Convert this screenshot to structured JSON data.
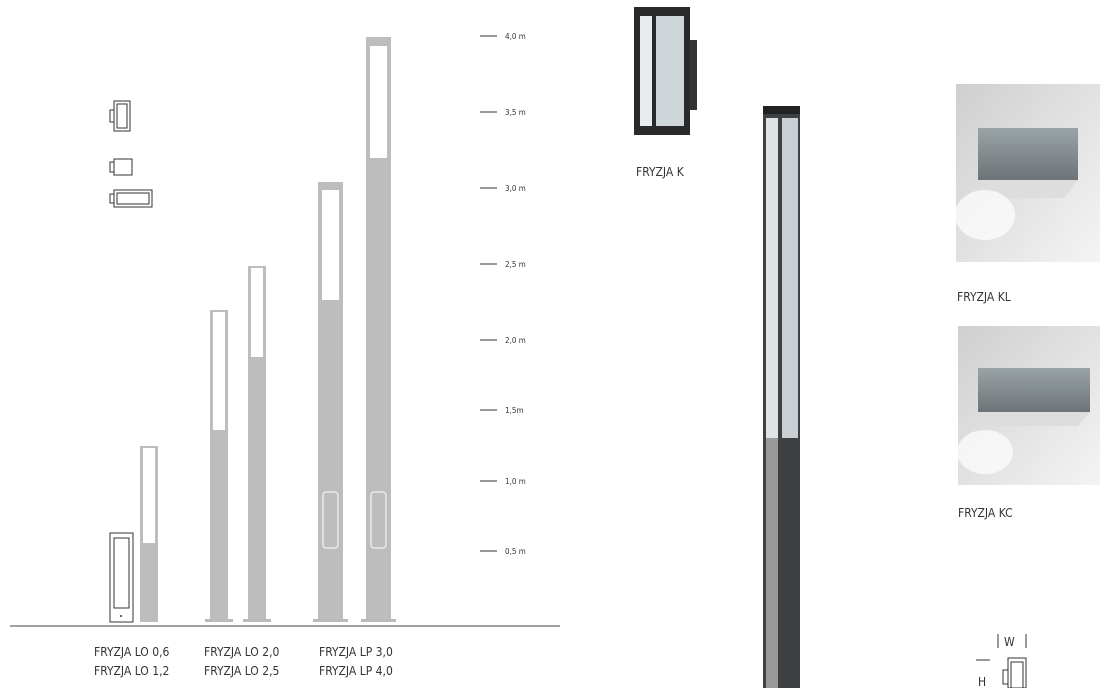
{
  "scale": {
    "labels": [
      "4,0 m",
      "3,5 m",
      "3,0 m",
      "2,5 m",
      "2,0 m",
      "1,5m",
      "1,0 m",
      "0,5 m"
    ]
  },
  "groups": [
    {
      "lines": [
        "FRYZJA LO 0,6",
        "FRYZJA LO 1,2"
      ]
    },
    {
      "lines": [
        "FRYZJA LO 2,0",
        "FRYZJA LO 2,5"
      ]
    },
    {
      "lines": [
        "FRYZJA LP 3,0",
        "FRYZJA LP 4,0"
      ]
    }
  ],
  "products": [
    {
      "label": "FRYZJA K"
    },
    {
      "label": "FRYZJA KL"
    },
    {
      "label": "FRYZJA KC"
    }
  ],
  "dimensions": {
    "width": "W",
    "height": "H"
  }
}
